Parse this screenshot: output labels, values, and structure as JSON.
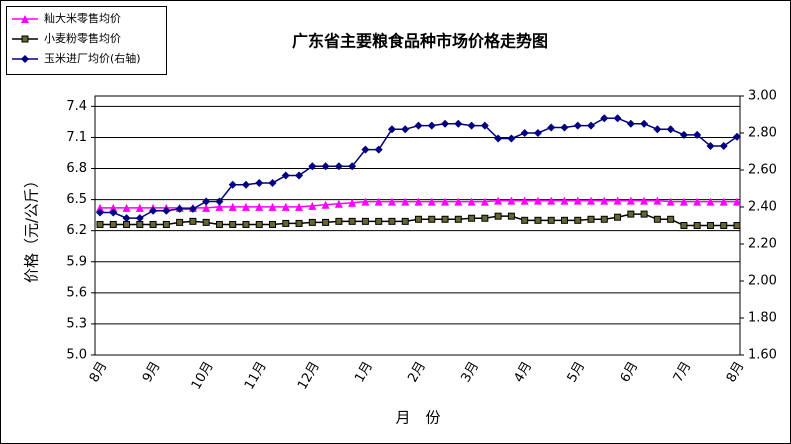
{
  "chart_data": {
    "type": "line",
    "title": "广东省主要粮食品种市场价格走势图",
    "y_label": "价格（元/公斤）",
    "x_label": "月　份",
    "categories": [
      "8月",
      null,
      null,
      null,
      "9月",
      null,
      null,
      null,
      "10月",
      null,
      null,
      null,
      "11月",
      null,
      null,
      null,
      "12月",
      null,
      null,
      null,
      "1月",
      null,
      null,
      null,
      "2月",
      null,
      null,
      null,
      "3月",
      null,
      null,
      null,
      "4月",
      null,
      null,
      null,
      "5月",
      null,
      null,
      null,
      "6月",
      null,
      null,
      null,
      "7月",
      null,
      null,
      null,
      "8月"
    ],
    "series": [
      {
        "name": "籼大米零售均价",
        "color": "#ff00ff",
        "marker": "triangle",
        "values": [
          6.42,
          6.42,
          6.42,
          6.42,
          6.42,
          6.42,
          6.42,
          6.42,
          6.42,
          6.43,
          6.43,
          6.43,
          6.43,
          6.43,
          6.43,
          6.43,
          6.44,
          6.45,
          6.46,
          6.47,
          6.48,
          6.48,
          6.48,
          6.48,
          6.48,
          6.48,
          6.48,
          6.48,
          6.48,
          6.48,
          6.49,
          6.49,
          6.49,
          6.49,
          6.49,
          6.49,
          6.49,
          6.49,
          6.49,
          6.49,
          6.49,
          6.49,
          6.49,
          6.48,
          6.48,
          6.48,
          6.48,
          6.48,
          6.48
        ]
      },
      {
        "name": "小麦粉零售均价",
        "color": "#333300",
        "marker": "square",
        "values": [
          6.26,
          6.26,
          6.26,
          6.26,
          6.26,
          6.26,
          6.28,
          6.29,
          6.28,
          6.26,
          6.26,
          6.26,
          6.26,
          6.26,
          6.27,
          6.27,
          6.28,
          6.28,
          6.29,
          6.29,
          6.29,
          6.29,
          6.29,
          6.29,
          6.31,
          6.31,
          6.31,
          6.31,
          6.32,
          6.32,
          6.34,
          6.34,
          6.3,
          6.3,
          6.3,
          6.3,
          6.3,
          6.31,
          6.31,
          6.33,
          6.36,
          6.36,
          6.31,
          6.31,
          6.25,
          6.25,
          6.25,
          6.25,
          6.25
        ]
      },
      {
        "name": "玉米进厂均价(右轴)",
        "color": "#000080",
        "marker": "diamond",
        "axis": "y2",
        "values": [
          2.37,
          2.37,
          2.34,
          2.34,
          2.38,
          2.38,
          2.39,
          2.39,
          2.43,
          2.43,
          2.52,
          2.52,
          2.53,
          2.53,
          2.57,
          2.57,
          2.62,
          2.62,
          2.62,
          2.62,
          2.71,
          2.71,
          2.82,
          2.82,
          2.84,
          2.84,
          2.85,
          2.85,
          2.84,
          2.84,
          2.77,
          2.77,
          2.8,
          2.8,
          2.83,
          2.83,
          2.84,
          2.84,
          2.88,
          2.88,
          2.85,
          2.85,
          2.82,
          2.82,
          2.79,
          2.79,
          2.73,
          2.73,
          2.78
        ]
      }
    ],
    "ylim": [
      5.0,
      7.5
    ],
    "yticks": [
      {
        "value": 5.0,
        "label": "5.0"
      },
      5.3,
      5.6,
      5.9,
      6.2,
      6.5,
      6.8,
      7.1,
      7.4
    ],
    "y2lim": [
      1.6,
      3.0
    ],
    "y2ticks": [
      {
        "value": 1.6,
        "label": "1.60"
      },
      {
        "value": 1.8,
        "label": "1.80"
      },
      {
        "value": 2.0,
        "label": "2.00"
      },
      {
        "value": 2.2,
        "label": "2.20"
      },
      {
        "value": 2.4,
        "label": "2.40"
      },
      {
        "value": 2.6,
        "label": "2.60"
      },
      {
        "value": 2.8,
        "label": "2.80"
      },
      {
        "value": 3.0,
        "label": "3.00"
      }
    ],
    "grid": true,
    "legend": "top-left"
  }
}
